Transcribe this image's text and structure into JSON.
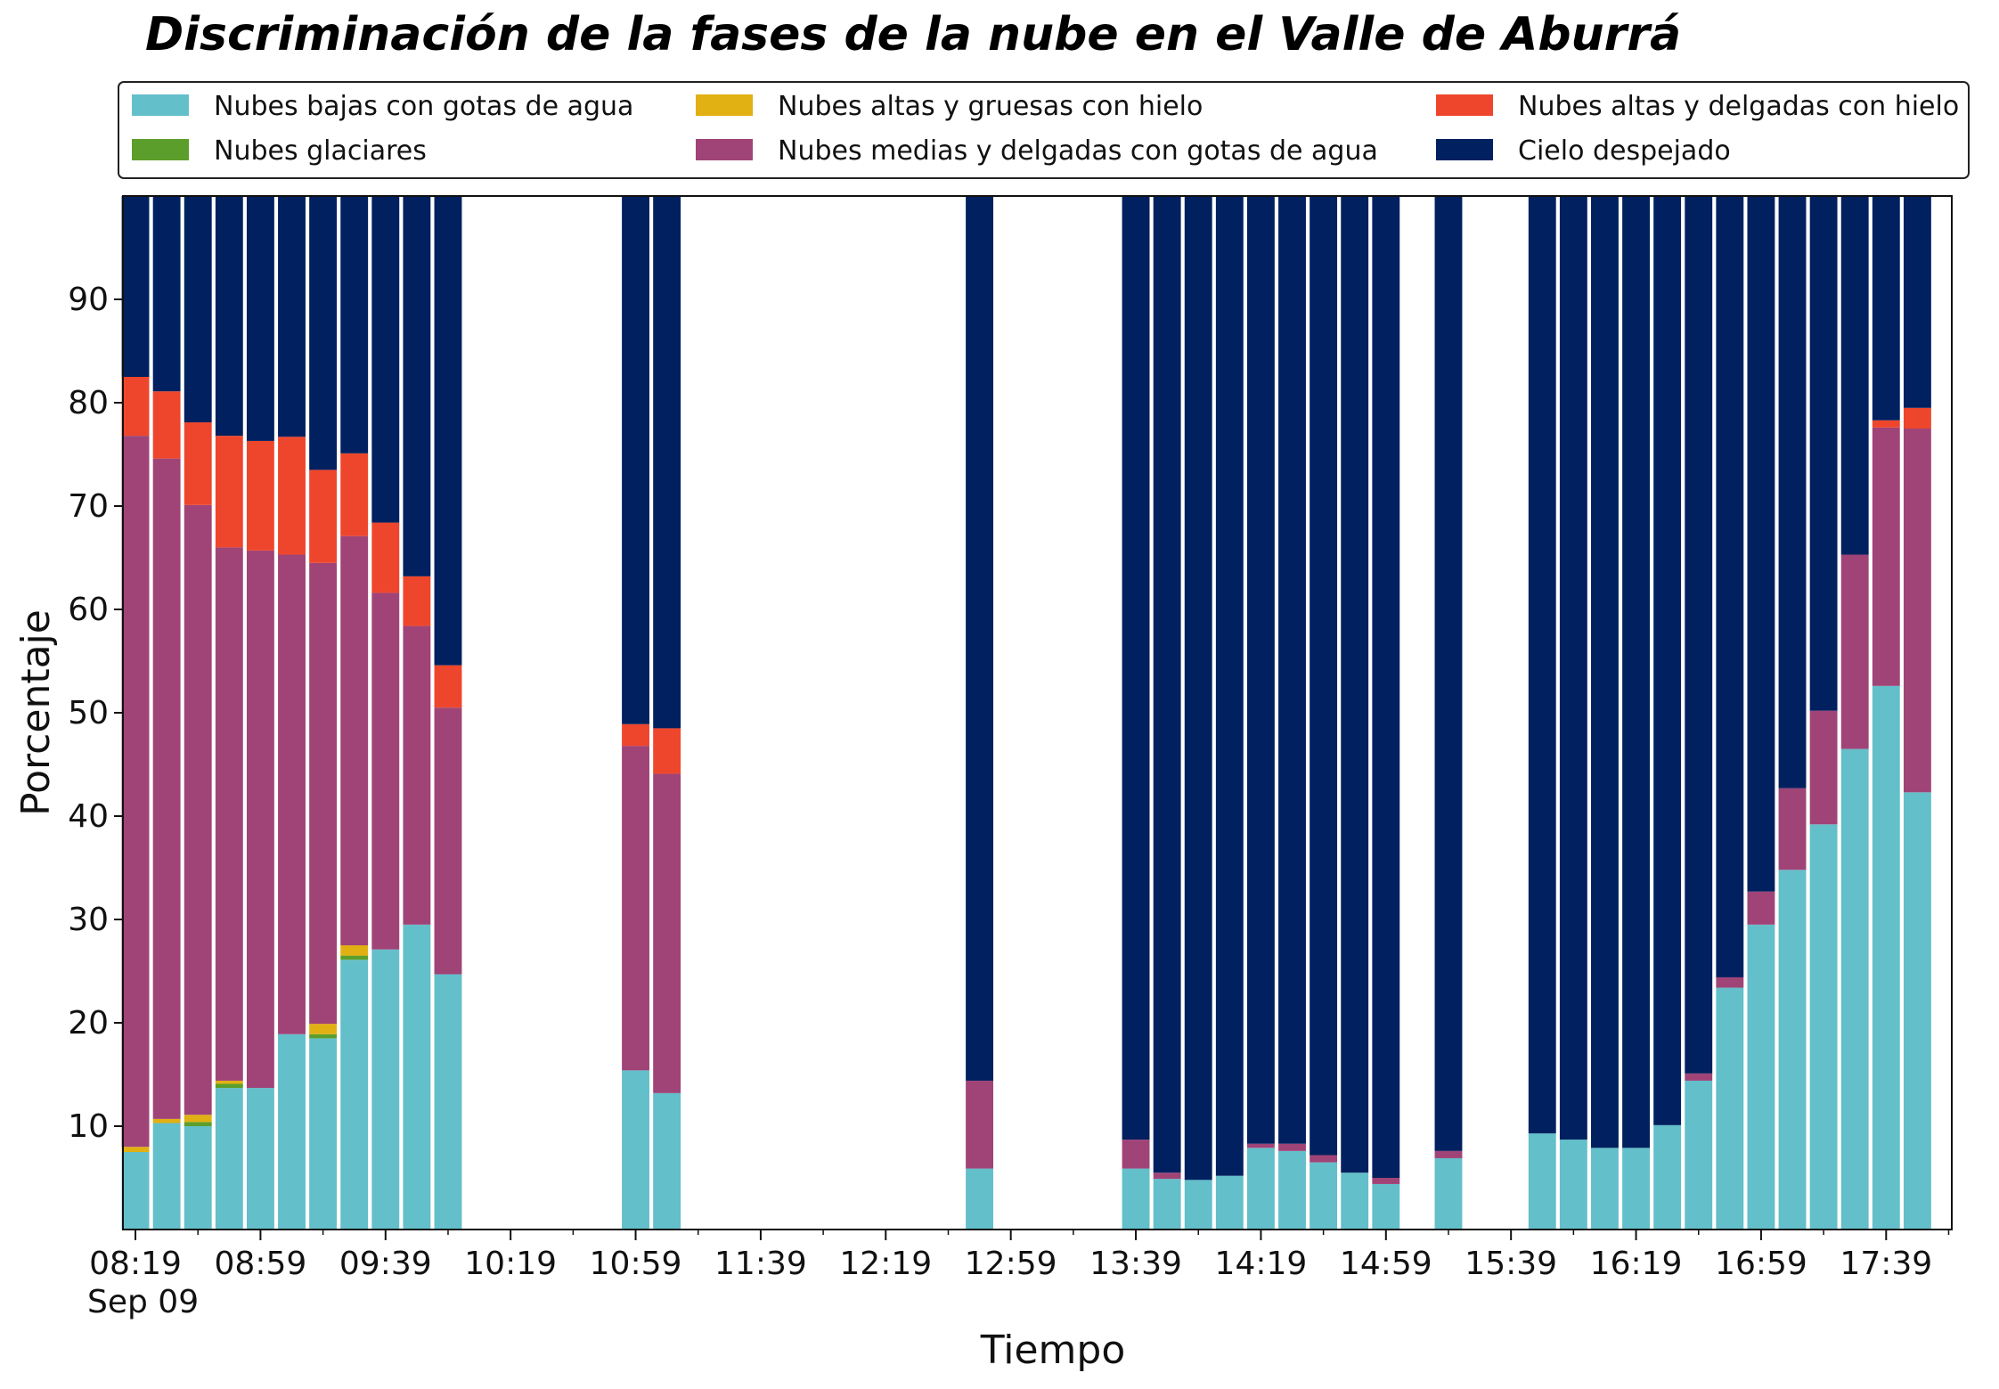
{
  "chart_data": {
    "type": "bar",
    "stacked": true,
    "title": "Discriminación de la fases de la nube en el Valle de Aburrá",
    "xlabel": "Tiempo",
    "ylabel": "Porcentaje",
    "ylim": [
      0,
      100
    ],
    "yticks": [
      10,
      20,
      30,
      40,
      50,
      60,
      70,
      80,
      90
    ],
    "x_start_minutes": 495,
    "x_end_minutes": 1080,
    "bar_interval_minutes": 10,
    "xtick_labels": [
      "08:19",
      "08:59",
      "09:39",
      "10:19",
      "10:59",
      "11:39",
      "12:19",
      "12:59",
      "13:39",
      "14:19",
      "14:59",
      "15:39",
      "16:19",
      "16:59",
      "17:39"
    ],
    "xtick_minutes": [
      499,
      539,
      579,
      619,
      659,
      699,
      739,
      779,
      819,
      859,
      899,
      939,
      979,
      1019,
      1059
    ],
    "xtick_sublabel": "Sep 09",
    "grid": false,
    "legend_position": "top",
    "times": [
      "08:19",
      "08:29",
      "08:39",
      "08:49",
      "08:59",
      "09:09",
      "09:19",
      "09:29",
      "09:39",
      "09:49",
      "09:59",
      "10:59",
      "11:09",
      "12:49",
      "13:39",
      "13:49",
      "13:59",
      "14:09",
      "14:19",
      "14:29",
      "14:39",
      "14:49",
      "14:59",
      "15:19",
      "15:49",
      "15:59",
      "16:09",
      "16:19",
      "16:29",
      "16:39",
      "16:49",
      "16:59",
      "17:09",
      "17:19",
      "17:29",
      "17:39",
      "17:49"
    ],
    "x_minutes": [
      499,
      509,
      519,
      529,
      539,
      549,
      559,
      569,
      579,
      589,
      599,
      659,
      669,
      769,
      819,
      829,
      839,
      849,
      859,
      869,
      879,
      889,
      899,
      919,
      949,
      959,
      969,
      979,
      989,
      999,
      1009,
      1019,
      1029,
      1039,
      1049,
      1059,
      1069
    ],
    "series": [
      {
        "name": "Nubes bajas con gotas de agua",
        "color": "#63bfca",
        "values": [
          7.5,
          10.3,
          10.0,
          13.7,
          13.7,
          18.9,
          18.5,
          26.1,
          27.1,
          29.5,
          24.7,
          15.4,
          13.2,
          5.9,
          5.9,
          4.9,
          4.8,
          5.2,
          7.9,
          7.6,
          6.5,
          5.5,
          4.4,
          6.9,
          9.3,
          8.7,
          7.9,
          7.9,
          10.1,
          14.4,
          23.4,
          29.5,
          34.8,
          39.2,
          46.5,
          52.6,
          42.3
        ]
      },
      {
        "name": "Nubes glaciares",
        "color": "#5c9e2b",
        "values": [
          0,
          0,
          0.4,
          0.4,
          0,
          0,
          0.4,
          0.4,
          0,
          0,
          0,
          0,
          0,
          0,
          0,
          0,
          0,
          0,
          0,
          0,
          0,
          0,
          0,
          0,
          0,
          0,
          0,
          0,
          0,
          0,
          0,
          0,
          0,
          0,
          0,
          0,
          0
        ]
      },
      {
        "name": "Nubes altas y gruesas con hielo",
        "color": "#e1b012",
        "values": [
          0.5,
          0.4,
          0.7,
          0.3,
          0,
          0,
          1.0,
          1.0,
          0,
          0,
          0,
          0,
          0,
          0,
          0,
          0,
          0,
          0,
          0,
          0,
          0,
          0,
          0,
          0,
          0,
          0,
          0,
          0,
          0,
          0,
          0,
          0,
          0,
          0,
          0,
          0,
          0
        ]
      },
      {
        "name": "Nubes medias y delgadas con gotas de agua",
        "color": "#a04477",
        "values": [
          68.8,
          63.9,
          59.0,
          51.6,
          52.0,
          46.4,
          44.6,
          39.6,
          34.5,
          28.9,
          25.8,
          31.4,
          30.9,
          8.5,
          2.8,
          0.6,
          0,
          0,
          0.4,
          0.7,
          0.7,
          0,
          0.6,
          0.7,
          0,
          0,
          0,
          0,
          0,
          0.7,
          1.0,
          3.2,
          7.9,
          11.0,
          18.8,
          25.0,
          35.2
        ]
      },
      {
        "name": "Nubes altas y delgadas con hielo",
        "color": "#ee462c",
        "values": [
          5.7,
          6.5,
          8.0,
          10.8,
          10.6,
          11.4,
          9.0,
          8.0,
          6.8,
          4.8,
          4.1,
          2.1,
          4.4,
          0,
          0,
          0,
          0,
          0,
          0,
          0,
          0,
          0,
          0,
          0,
          0,
          0,
          0,
          0,
          0,
          0,
          0,
          0,
          0,
          0,
          0,
          0.7,
          2.0
        ]
      },
      {
        "name": "Cielo despejado",
        "color": "#00205f",
        "values": [
          17.5,
          18.9,
          21.9,
          23.2,
          23.7,
          23.3,
          26.5,
          24.9,
          31.6,
          36.8,
          45.4,
          51.1,
          51.5,
          85.6,
          91.3,
          94.5,
          95.2,
          94.8,
          91.7,
          91.7,
          92.8,
          94.5,
          95.0,
          92.4,
          90.7,
          91.3,
          92.1,
          92.1,
          89.9,
          84.9,
          75.6,
          67.3,
          57.3,
          49.8,
          34.7,
          21.7,
          20.5
        ]
      }
    ]
  }
}
